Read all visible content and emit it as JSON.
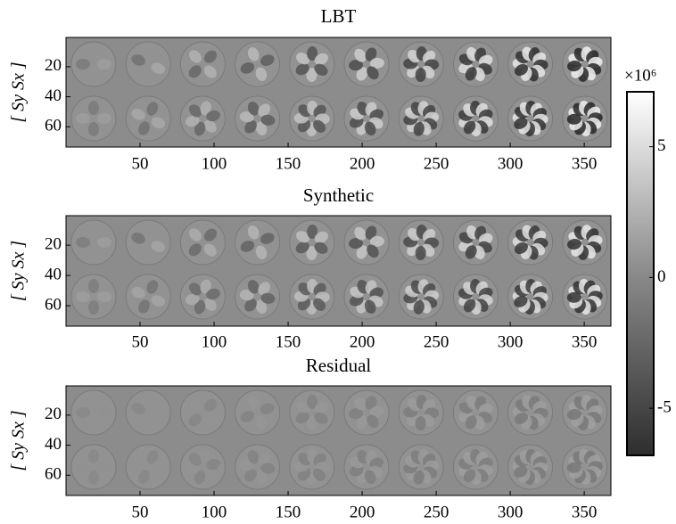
{
  "chart_data": [
    {
      "type": "image",
      "title": "LBT",
      "ylabel": "[ Sy Sx ]",
      "xlim": [
        0,
        368
      ],
      "xticks": [
        50,
        100,
        150,
        200,
        250,
        300,
        350
      ],
      "ylim": [
        0.5,
        73.5
      ],
      "yticks": [
        20,
        40,
        60
      ],
      "reverse_y": true,
      "contrast": 1.0
    },
    {
      "type": "image",
      "title": "Synthetic",
      "ylabel": "[ Sy Sx ]",
      "xlim": [
        0,
        368
      ],
      "xticks": [
        50,
        100,
        150,
        200,
        250,
        300,
        350
      ],
      "ylim": [
        0.5,
        73.5
      ],
      "yticks": [
        20,
        40,
        60
      ],
      "reverse_y": true,
      "contrast": 0.9
    },
    {
      "type": "image",
      "title": "Residual",
      "ylabel": "[ Sy Sx ]",
      "xlim": [
        0,
        368
      ],
      "xticks": [
        50,
        100,
        150,
        200,
        250,
        300,
        350
      ],
      "ylim": [
        0.5,
        73.5
      ],
      "yticks": [
        20,
        40,
        60
      ],
      "reverse_y": true,
      "contrast": 0.2
    },
    {
      "type": "colorbar",
      "multiplier_label": "×10⁶",
      "lim": [
        -6800000,
        7100000
      ],
      "ticks": [
        {
          "value": 5000000,
          "label": "5"
        },
        0,
        {
          "value": -5000000,
          "label": "-5"
        }
      ]
    }
  ]
}
